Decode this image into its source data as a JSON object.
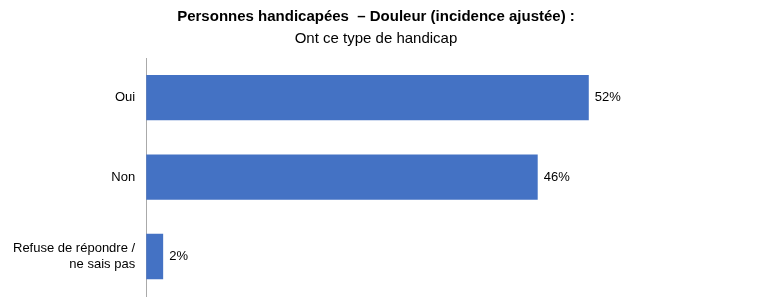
{
  "chart_data": {
    "type": "bar",
    "orientation": "horizontal",
    "title": "Personnes handicapées  – Douleur (incidence ajustée) :",
    "subtitle": "Ont ce type de handicap",
    "categories": [
      "Oui",
      "Non",
      "Refuse de répondre /\nne sais pas"
    ],
    "values": [
      52,
      46,
      2
    ],
    "value_labels": [
      "52%",
      "46%",
      "2%"
    ],
    "data_labels": true,
    "color": "#4472C4",
    "xlim": [
      0,
      70
    ],
    "grid": false,
    "legend": false,
    "tick_labels": "y"
  }
}
